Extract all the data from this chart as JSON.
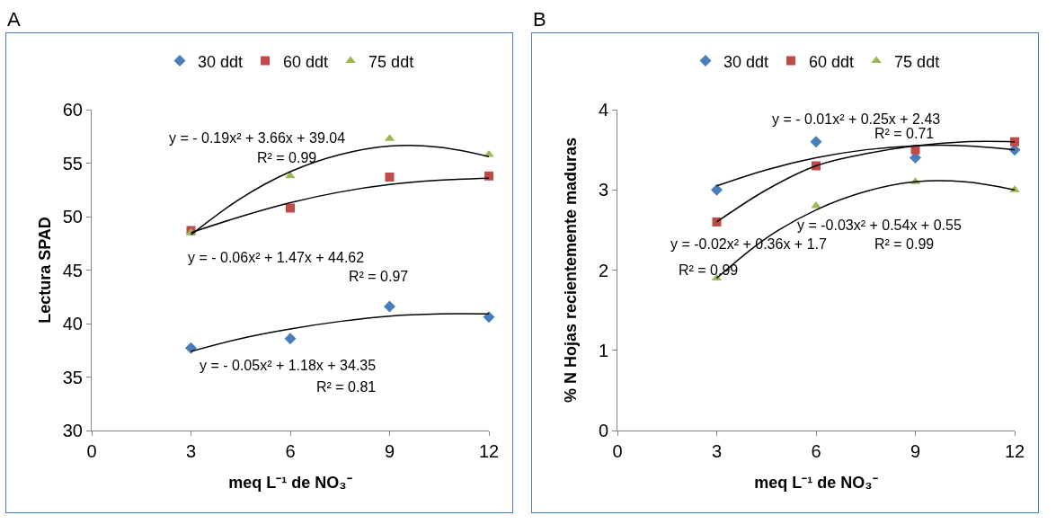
{
  "chart_data": [
    {
      "type": "scatter",
      "title": "A",
      "xlabel": "meq L⁻¹ de NO₃⁻",
      "ylabel": "Lectura SPAD",
      "x": [
        3,
        6,
        9,
        12
      ],
      "xlim": [
        0,
        12
      ],
      "xticks": [
        0,
        3,
        6,
        9,
        12
      ],
      "ylim": [
        30,
        60
      ],
      "yticks": [
        30,
        35,
        40,
        45,
        50,
        55,
        60
      ],
      "grid": false,
      "legend": "top",
      "series": [
        {
          "name": "30 ddt",
          "color": "#4a7ebb",
          "marker": "diamond",
          "values": [
            37.7,
            38.6,
            41.6,
            40.6
          ]
        },
        {
          "name": "60 ddt",
          "color": "#be4b48",
          "marker": "square",
          "values": [
            48.7,
            50.8,
            53.7,
            53.8
          ]
        },
        {
          "name": "75 ddt",
          "color": "#98b954",
          "marker": "triangle",
          "values": [
            48.5,
            53.8,
            57.3,
            55.8
          ]
        },
        {
          "type": "line",
          "color": "#000000",
          "marker": "none",
          "x": [
            3,
            4.5,
            6,
            7.5,
            9,
            10.5,
            12
          ],
          "values": [
            37.4,
            38.6,
            39.5,
            40.2,
            40.7,
            40.9,
            40.9
          ]
        },
        {
          "type": "line",
          "color": "#000000",
          "marker": "none",
          "x": [
            3,
            4.5,
            6,
            7.5,
            9,
            10.5,
            12
          ],
          "values": [
            48.5,
            50,
            51.3,
            52.3,
            53,
            53.4,
            53.6
          ]
        },
        {
          "type": "line",
          "color": "#000000",
          "marker": "none",
          "x": [
            3,
            4.5,
            6,
            7.5,
            9,
            10.5,
            12
          ],
          "values": [
            48.3,
            51.7,
            54.2,
            55.8,
            56.6,
            56.5,
            55.6
          ]
        }
      ],
      "annotations": [
        "y = - 0.19x² + 3.66x + 39.04",
        "R² = 0.99",
        "y = - 0.06x² + 1.47x + 44.62",
        "R² = 0.97",
        "y = - 0.05x² + 1.18x + 34.35",
        "R² = 0.81"
      ]
    },
    {
      "type": "scatter",
      "title": "B",
      "xlabel": "meq L⁻¹ de NO₃⁻",
      "ylabel": "% N Hojas recientemente maduras",
      "x": [
        3,
        6,
        9,
        12
      ],
      "xlim": [
        0,
        12
      ],
      "xticks": [
        0,
        3,
        6,
        9,
        12
      ],
      "ylim": [
        0,
        4
      ],
      "yticks": [
        0,
        1,
        2,
        3,
        4
      ],
      "grid": false,
      "legend": "top",
      "series": [
        {
          "name": "30 ddt",
          "color": "#4a7ebb",
          "marker": "diamond",
          "values": [
            3.0,
            3.6,
            3.4,
            3.5
          ]
        },
        {
          "name": "60 ddt",
          "color": "#be4b48",
          "marker": "square",
          "values": [
            2.6,
            3.3,
            3.5,
            3.6
          ]
        },
        {
          "name": "75 ddt",
          "color": "#98b954",
          "marker": "triangle",
          "values": [
            1.9,
            2.8,
            3.1,
            3.0
          ]
        },
        {
          "type": "line",
          "color": "#000000",
          "marker": "none",
          "x": [
            3,
            4.5,
            6,
            7.5,
            9,
            10.5,
            12
          ],
          "values": [
            3.05,
            3.25,
            3.4,
            3.5,
            3.55,
            3.55,
            3.5
          ]
        },
        {
          "type": "line",
          "color": "#000000",
          "marker": "none",
          "x": [
            3,
            4.5,
            6,
            7.5,
            9,
            10.5,
            12
          ],
          "values": [
            2.6,
            3.0,
            3.3,
            3.45,
            3.55,
            3.6,
            3.6
          ]
        },
        {
          "type": "line",
          "color": "#000000",
          "marker": "none",
          "x": [
            3,
            4.5,
            6,
            7.5,
            9,
            10.5,
            12
          ],
          "values": [
            1.9,
            2.4,
            2.75,
            2.98,
            3.1,
            3.1,
            3.0
          ]
        }
      ],
      "annotations": [
        "y = - 0.01x² + 0.25x + 2.43",
        "R² = 0.71",
        "y = -0.02x² + 0.36x + 1.7",
        "R² = 0.99",
        "y = -0.03x² + 0.54x + 0.55",
        "R² = 0.99"
      ]
    }
  ]
}
